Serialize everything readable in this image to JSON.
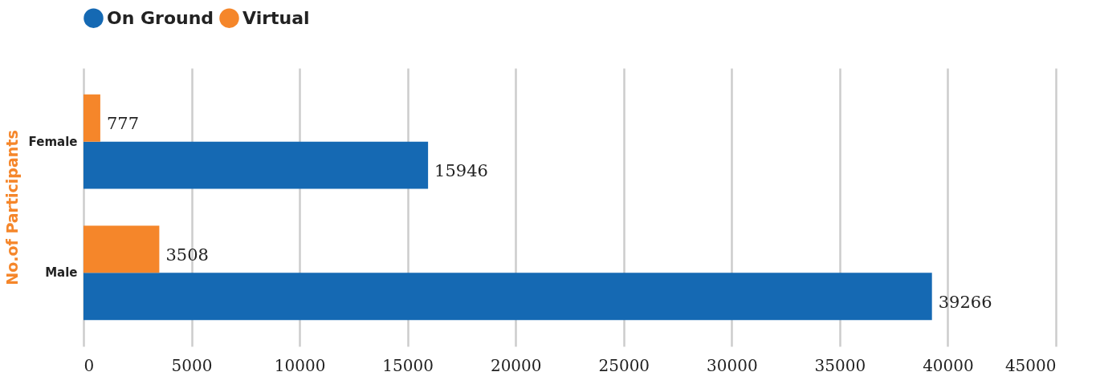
{
  "chart_data": {
    "type": "bar",
    "orientation": "horizontal",
    "ylabel": "No.of Participants",
    "categories": [
      "Female",
      "Male"
    ],
    "series": [
      {
        "name": "On Ground",
        "color": "#1569b3",
        "values": [
          15946,
          39266
        ]
      },
      {
        "name": "Virtual",
        "color": "#f5862a",
        "values": [
          777,
          3508
        ]
      }
    ],
    "xlim": [
      0,
      45000
    ],
    "xticks": [
      0,
      5000,
      10000,
      15000,
      20000,
      25000,
      30000,
      35000,
      40000,
      45000
    ],
    "grid": "x",
    "legend": "top",
    "data_labels": true
  }
}
